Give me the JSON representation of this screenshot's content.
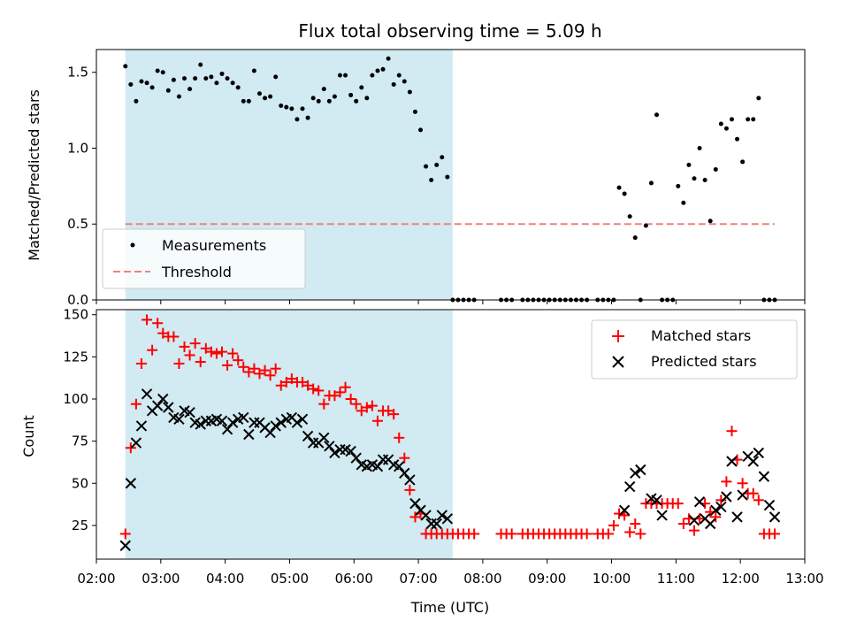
{
  "chart_data": [
    {
      "type": "scatter",
      "title": "Flux total observing time = 5.09 h",
      "xlabel": "",
      "ylabel": "Matched/Predicted stars",
      "xlim": [
        2.0,
        13.0
      ],
      "ylim": [
        0.0,
        1.65
      ],
      "yticks": [
        0.0,
        0.5,
        1.0,
        1.5
      ],
      "ytick_labels": [
        "0.0",
        "0.5",
        "1.0",
        "1.5"
      ],
      "grid": false,
      "legend_position": "lower-left",
      "shaded_region": {
        "from": "02:27",
        "to": "07:32",
        "color": "#add8e6"
      },
      "threshold": {
        "name": "Threshold",
        "value": 0.5,
        "from": "02:27",
        "to": "12:32",
        "color": "#f08080"
      },
      "series": [
        {
          "name": "Measurements",
          "color": "#000000",
          "marker": "dot",
          "x": [
            "02:27",
            "02:32",
            "02:37",
            "02:42",
            "02:47",
            "02:52",
            "02:57",
            "03:02",
            "03:07",
            "03:12",
            "03:17",
            "03:22",
            "03:27",
            "03:32",
            "03:37",
            "03:42",
            "03:47",
            "03:52",
            "03:57",
            "04:02",
            "04:07",
            "04:12",
            "04:17",
            "04:22",
            "04:27",
            "04:32",
            "04:37",
            "04:42",
            "04:47",
            "04:52",
            "04:57",
            "05:02",
            "05:07",
            "05:12",
            "05:17",
            "05:22",
            "05:27",
            "05:32",
            "05:37",
            "05:42",
            "05:47",
            "05:52",
            "05:57",
            "06:02",
            "06:07",
            "06:12",
            "06:17",
            "06:22",
            "06:27",
            "06:32",
            "06:37",
            "06:42",
            "06:47",
            "06:52",
            "06:57",
            "07:02",
            "07:07",
            "07:12",
            "07:17",
            "07:22",
            "07:27",
            "07:32",
            "07:37",
            "07:42",
            "07:47",
            "07:52",
            "08:17",
            "08:22",
            "08:27",
            "08:37",
            "08:42",
            "08:47",
            "08:52",
            "08:57",
            "09:02",
            "09:07",
            "09:12",
            "09:17",
            "09:22",
            "09:27",
            "09:32",
            "09:37",
            "09:47",
            "09:52",
            "09:57",
            "10:02",
            "10:07",
            "10:12",
            "10:17",
            "10:22",
            "10:27",
            "10:32",
            "10:37",
            "10:42",
            "10:47",
            "10:52",
            "10:57",
            "11:02",
            "11:07",
            "11:12",
            "11:17",
            "11:22",
            "11:27",
            "11:32",
            "11:37",
            "11:42",
            "11:47",
            "11:52",
            "11:57",
            "12:02",
            "12:07",
            "12:12",
            "12:17",
            "12:22",
            "12:27",
            "12:32"
          ],
          "y": [
            1.54,
            1.42,
            1.31,
            1.44,
            1.43,
            1.4,
            1.51,
            1.5,
            1.38,
            1.45,
            1.34,
            1.46,
            1.39,
            1.46,
            1.55,
            1.46,
            1.47,
            1.43,
            1.49,
            1.46,
            1.43,
            1.4,
            1.31,
            1.31,
            1.51,
            1.36,
            1.33,
            1.34,
            1.47,
            1.28,
            1.27,
            1.26,
            1.19,
            1.26,
            1.2,
            1.33,
            1.31,
            1.39,
            1.31,
            1.34,
            1.48,
            1.48,
            1.35,
            1.31,
            1.4,
            1.33,
            1.48,
            1.51,
            1.52,
            1.59,
            1.42,
            1.48,
            1.44,
            1.37,
            1.24,
            1.12,
            0.88,
            0.79,
            0.89,
            0.94,
            0.81,
            0.0,
            0.0,
            0.0,
            0.0,
            0.0,
            0.0,
            0.0,
            0.0,
            0.0,
            0.0,
            0.0,
            0.0,
            0.0,
            0.0,
            0.0,
            0.0,
            0.0,
            0.0,
            0.0,
            0.0,
            0.0,
            0.0,
            0.0,
            0.0,
            0.0,
            0.74,
            0.7,
            0.55,
            0.41,
            0.0,
            0.49,
            0.77,
            1.22,
            0.0,
            0.0,
            0.0,
            0.75,
            0.64,
            0.89,
            0.8,
            1.0,
            0.79,
            0.52,
            0.86,
            1.16,
            1.13,
            1.19,
            1.06,
            0.91,
            1.19,
            1.19,
            1.33,
            0.0,
            0.0,
            0.0
          ]
        }
      ]
    },
    {
      "type": "scatter",
      "title": "",
      "xlabel": "Time (UTC)",
      "ylabel": "Count",
      "xlim": [
        2.0,
        13.0
      ],
      "ylim": [
        5,
        153
      ],
      "xticks": [
        "02:00",
        "03:00",
        "04:00",
        "05:00",
        "06:00",
        "07:00",
        "08:00",
        "09:00",
        "10:00",
        "11:00",
        "12:00",
        "13:00"
      ],
      "yticks": [
        25,
        50,
        75,
        100,
        125,
        150
      ],
      "ytick_labels": [
        "25",
        "50",
        "75",
        "100",
        "125",
        "150"
      ],
      "grid": false,
      "legend_position": "top-right",
      "shaded_region": {
        "from": "02:27",
        "to": "07:32",
        "color": "#add8e6"
      },
      "series": [
        {
          "name": "Matched stars",
          "color": "#ff0000",
          "marker": "plus",
          "x": [
            "02:27",
            "02:32",
            "02:37",
            "02:42",
            "02:47",
            "02:52",
            "02:57",
            "03:02",
            "03:07",
            "03:12",
            "03:17",
            "03:22",
            "03:27",
            "03:32",
            "03:37",
            "03:42",
            "03:47",
            "03:52",
            "03:57",
            "04:02",
            "04:07",
            "04:12",
            "04:17",
            "04:22",
            "04:27",
            "04:32",
            "04:37",
            "04:42",
            "04:47",
            "04:52",
            "04:57",
            "05:02",
            "05:07",
            "05:12",
            "05:17",
            "05:22",
            "05:27",
            "05:32",
            "05:37",
            "05:42",
            "05:47",
            "05:52",
            "05:57",
            "06:02",
            "06:07",
            "06:12",
            "06:17",
            "06:22",
            "06:27",
            "06:32",
            "06:37",
            "06:42",
            "06:47",
            "06:52",
            "06:57",
            "07:02",
            "07:07",
            "07:12",
            "07:17",
            "07:22",
            "07:27",
            "07:32",
            "07:37",
            "07:42",
            "07:47",
            "07:52",
            "08:17",
            "08:22",
            "08:27",
            "08:37",
            "08:42",
            "08:47",
            "08:52",
            "08:57",
            "09:02",
            "09:07",
            "09:12",
            "09:17",
            "09:22",
            "09:27",
            "09:32",
            "09:37",
            "09:47",
            "09:52",
            "09:57",
            "10:02",
            "10:07",
            "10:12",
            "10:17",
            "10:22",
            "10:27",
            "10:32",
            "10:37",
            "10:42",
            "10:47",
            "10:52",
            "10:57",
            "11:02",
            "11:07",
            "11:12",
            "11:17",
            "11:22",
            "11:27",
            "11:32",
            "11:37",
            "11:42",
            "11:47",
            "11:52",
            "11:57",
            "12:02",
            "12:07",
            "12:12",
            "12:17",
            "12:22",
            "12:27",
            "12:32"
          ],
          "y": [
            20,
            71,
            97,
            121,
            147,
            129,
            145,
            139,
            137,
            137,
            121,
            131,
            126,
            133,
            122,
            130,
            128,
            127,
            128,
            120,
            127,
            123,
            119,
            116,
            118,
            115,
            117,
            114,
            118,
            108,
            110,
            112,
            110,
            110,
            108,
            106,
            105,
            97,
            102,
            102,
            104,
            107,
            100,
            97,
            93,
            95,
            96,
            87,
            93,
            93,
            91,
            77,
            65,
            46,
            30,
            32,
            20,
            20,
            20,
            20,
            20,
            20,
            20,
            20,
            20,
            20,
            20,
            20,
            20,
            20,
            20,
            20,
            20,
            20,
            20,
            20,
            20,
            20,
            20,
            20,
            20,
            20,
            20,
            20,
            20,
            25,
            32,
            31,
            21,
            26,
            20,
            38,
            38,
            38,
            38,
            38,
            38,
            38,
            26,
            29,
            22,
            29,
            38,
            33,
            30,
            40,
            51,
            81,
            64,
            50,
            44,
            44,
            40,
            20,
            20,
            20
          ]
        },
        {
          "name": "Predicted stars",
          "color": "#000000",
          "marker": "cross",
          "x": [
            "02:27",
            "02:32",
            "02:37",
            "02:42",
            "02:47",
            "02:52",
            "02:57",
            "03:02",
            "03:07",
            "03:12",
            "03:17",
            "03:22",
            "03:27",
            "03:32",
            "03:37",
            "03:42",
            "03:47",
            "03:52",
            "03:57",
            "04:02",
            "04:07",
            "04:12",
            "04:17",
            "04:22",
            "04:27",
            "04:32",
            "04:37",
            "04:42",
            "04:47",
            "04:52",
            "04:57",
            "05:02",
            "05:07",
            "05:12",
            "05:17",
            "05:22",
            "05:27",
            "05:32",
            "05:37",
            "05:42",
            "05:47",
            "05:52",
            "05:57",
            "06:02",
            "06:07",
            "06:12",
            "06:17",
            "06:22",
            "06:27",
            "06:32",
            "06:37",
            "06:42",
            "06:47",
            "06:52",
            "06:57",
            "07:02",
            "07:07",
            "07:12",
            "07:17",
            "07:22",
            "07:27",
            "10:12",
            "10:17",
            "10:22",
            "10:27",
            "10:37",
            "10:42",
            "10:47",
            "11:17",
            "11:22",
            "11:27",
            "11:32",
            "11:37",
            "11:42",
            "11:47",
            "11:52",
            "11:57",
            "12:02",
            "12:07",
            "12:12",
            "12:17",
            "12:22",
            "12:27",
            "12:32"
          ],
          "y": [
            13,
            50,
            74,
            84,
            103,
            93,
            96,
            100,
            95,
            89,
            88,
            93,
            92,
            86,
            85,
            87,
            87,
            88,
            87,
            82,
            86,
            88,
            89,
            79,
            86,
            86,
            83,
            80,
            84,
            86,
            88,
            89,
            86,
            88,
            78,
            74,
            74,
            77,
            72,
            68,
            70,
            70,
            69,
            65,
            61,
            60,
            61,
            60,
            64,
            64,
            61,
            60,
            56,
            52,
            38,
            34,
            31,
            26,
            26,
            31,
            29,
            34,
            48,
            56,
            58,
            41,
            40,
            31,
            28,
            39,
            29,
            26,
            34,
            36,
            42,
            63,
            30,
            43,
            66,
            63,
            68,
            54,
            37,
            30
          ]
        }
      ]
    }
  ]
}
